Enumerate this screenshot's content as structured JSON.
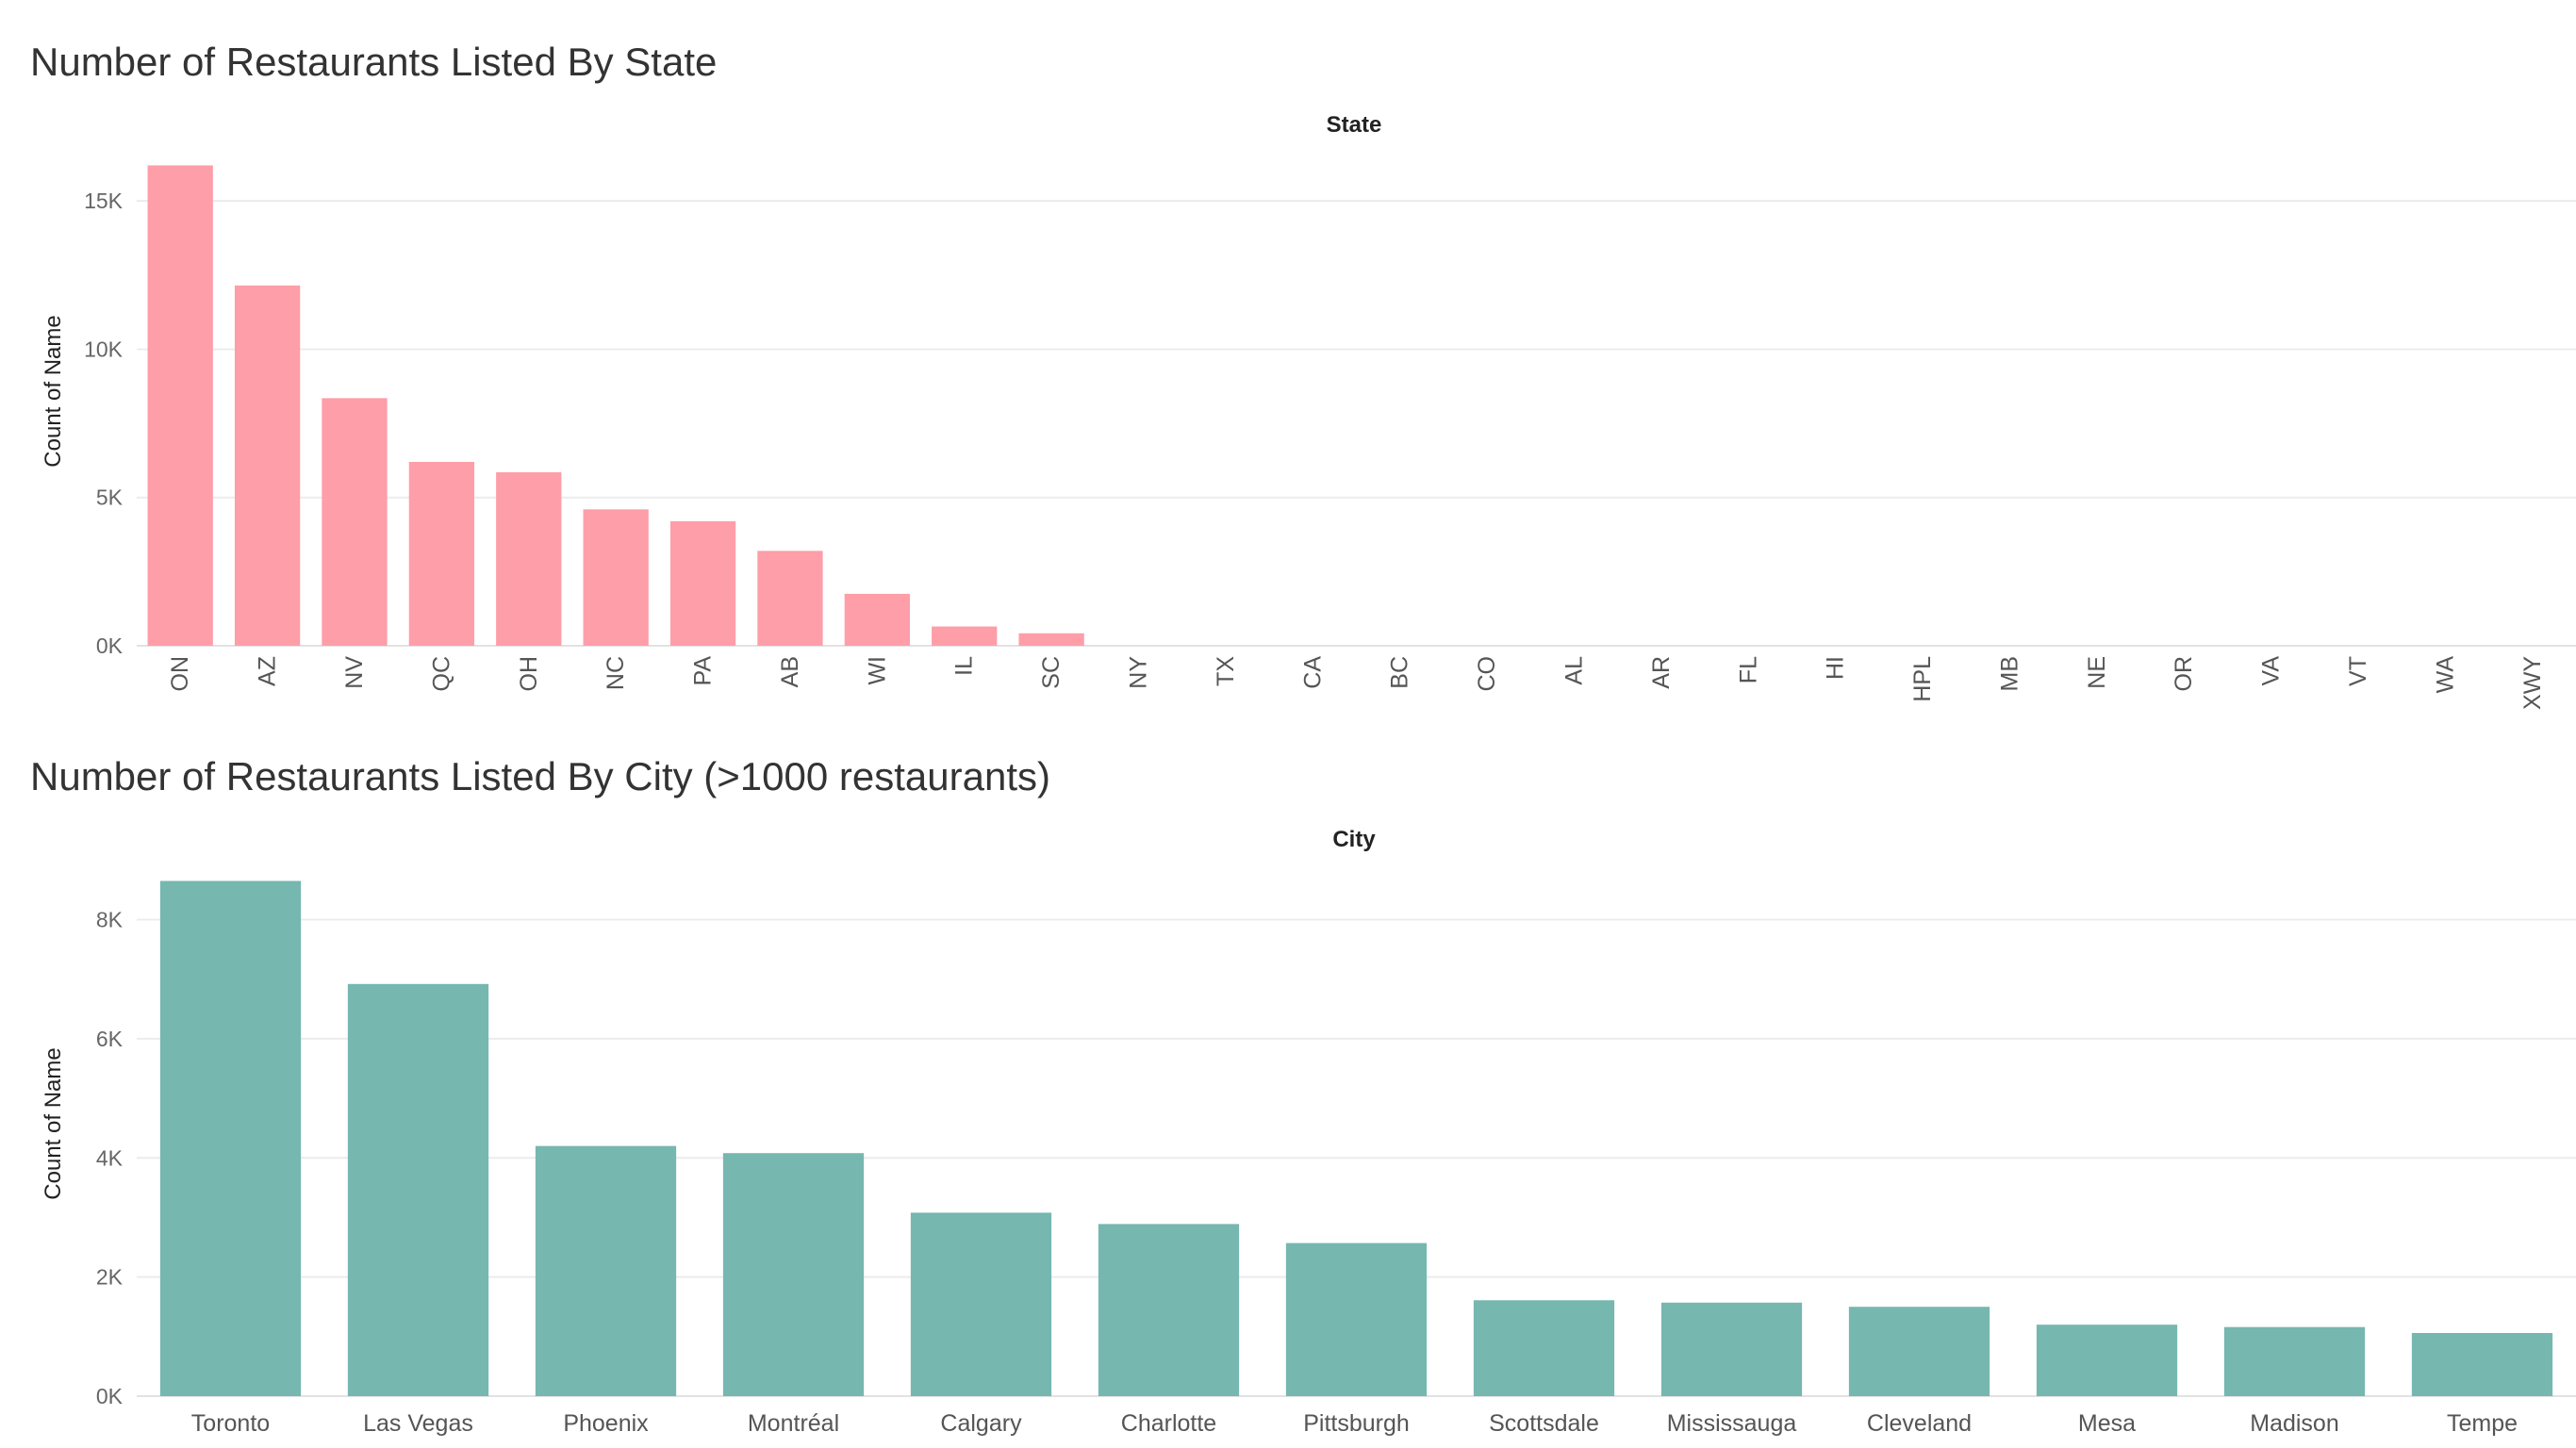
{
  "chart_data": [
    {
      "type": "bar",
      "title": "Number of Restaurants Listed By State",
      "xheader": "State",
      "ylabel": "Count of Name",
      "ylim": [
        0,
        16500
      ],
      "yticks": [
        {
          "value": 0,
          "label": "0K"
        },
        {
          "value": 5000,
          "label": "5K"
        },
        {
          "value": 10000,
          "label": "10K"
        },
        {
          "value": 15000,
          "label": "15K"
        }
      ],
      "color": "#fe9ea8",
      "grid": true,
      "categories": [
        "ON",
        "AZ",
        "NV",
        "QC",
        "OH",
        "NC",
        "PA",
        "AB",
        "WI",
        "IL",
        "SC",
        "NY",
        "TX",
        "CA",
        "BC",
        "CO",
        "AL",
        "AR",
        "FL",
        "HI",
        "HPL",
        "MB",
        "NE",
        "OR",
        "VA",
        "VT",
        "WA",
        "XWY"
      ],
      "values": [
        16200,
        12150,
        8350,
        6200,
        5850,
        4600,
        4200,
        3200,
        1750,
        650,
        420,
        2,
        2,
        2,
        1,
        1,
        1,
        1,
        1,
        1,
        1,
        1,
        1,
        1,
        1,
        1,
        1,
        1
      ]
    },
    {
      "type": "bar",
      "title": "Number of Restaurants Listed By City (>1000 restaurants)",
      "xheader": "City",
      "ylabel": "Count of Name",
      "ylim": [
        0,
        8800
      ],
      "yticks": [
        {
          "value": 0,
          "label": "0K"
        },
        {
          "value": 2000,
          "label": "2K"
        },
        {
          "value": 4000,
          "label": "4K"
        },
        {
          "value": 6000,
          "label": "6K"
        },
        {
          "value": 8000,
          "label": "8K"
        }
      ],
      "color": "#76b7b0",
      "grid": true,
      "categories": [
        "Toronto",
        "Las Vegas",
        "Phoenix",
        "Montréal",
        "Calgary",
        "Charlotte",
        "Pittsburgh",
        "Scottsdale",
        "Mississauga",
        "Cleveland",
        "Mesa",
        "Madison",
        "Tempe"
      ],
      "values": [
        8650,
        6920,
        4200,
        4080,
        3080,
        2890,
        2570,
        1610,
        1570,
        1500,
        1200,
        1160,
        1060
      ]
    }
  ]
}
